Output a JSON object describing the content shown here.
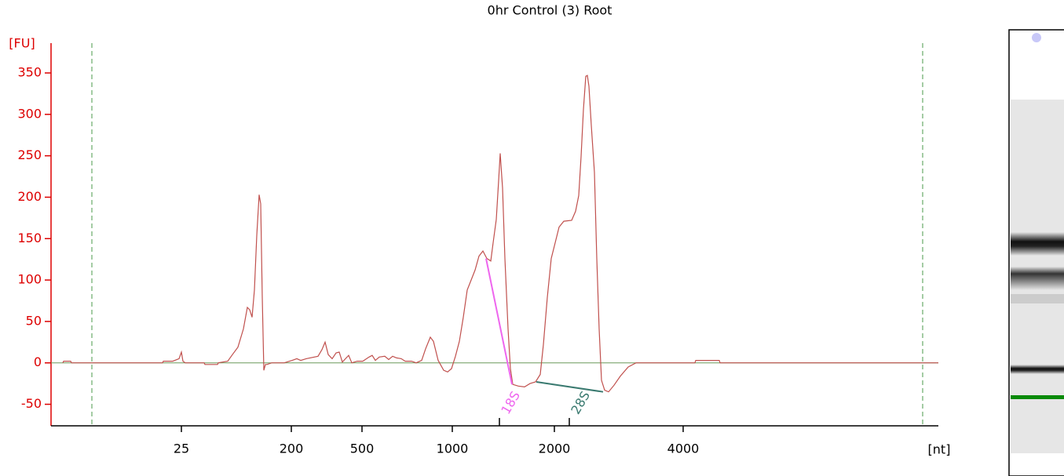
{
  "chart_data": {
    "type": "line",
    "title": "0hr Control (3) Root",
    "y_label": "[FU]",
    "x_label": "[nt]",
    "xlim": [
      0,
      113
    ],
    "ylim": [
      -76,
      386
    ],
    "yticks": [
      -50,
      0,
      50,
      100,
      150,
      200,
      250,
      300,
      350
    ],
    "xticks": [
      {
        "value": 16.6,
        "label": "25"
      },
      {
        "value": 30.6,
        "label": "200"
      },
      {
        "value": 39.6,
        "label": "500"
      },
      {
        "value": 51.1,
        "label": "1000"
      },
      {
        "value": 64.1,
        "label": "2000"
      },
      {
        "value": 80.5,
        "label": "4000"
      }
    ],
    "baseline": 0,
    "markers": [
      5.2,
      111
    ],
    "axis_color": "#dd0000",
    "series": [
      {
        "color": "#c0504d",
        "x": [
          1.5,
          1.6,
          2.5,
          2.6,
          14.2,
          14.3,
          15.5,
          16.3,
          16.6,
          16.8,
          17.1,
          19.5,
          19.6,
          21.2,
          21.3,
          22.5,
          23.1,
          23.8,
          24.5,
          25,
          25.3,
          25.6,
          25.9,
          26.2,
          26.5,
          26.7,
          26.9,
          27.1,
          27.3,
          27.5,
          28.1,
          29,
          29.7,
          30.7,
          31.3,
          31.8,
          32.5,
          34,
          34.5,
          34.9,
          35.3,
          35.8,
          36.3,
          36.7,
          37.1,
          37.5,
          37.9,
          38.3,
          39,
          39.7,
          40.5,
          40.9,
          41.3,
          41.8,
          42.5,
          43,
          43.5,
          44,
          44.6,
          45.1,
          45.9,
          46.5,
          47.2,
          47.7,
          48.3,
          48.7,
          49.3,
          50,
          50.5,
          51,
          51.5,
          52,
          52.5,
          53,
          53.5,
          54,
          54.5,
          55,
          55.5,
          56,
          56.3,
          56.7,
          57,
          57.2,
          57.5,
          57.8,
          58.2,
          58.5,
          58.8,
          59.5,
          60.3,
          61,
          61.7,
          62.3,
          62.7,
          63.2,
          63.7,
          64.2,
          64.7,
          65.3,
          66.3,
          66.8,
          67.2,
          67.5,
          67.8,
          68.1,
          68.3,
          68.5,
          68.8,
          69.2,
          69.5,
          69.8,
          70.1,
          70.5,
          71,
          71.7,
          72.5,
          73.5,
          74.5,
          80.5,
          82,
          82.1,
          85.1,
          85.2,
          113
        ],
        "values": [
          0,
          2,
          2,
          0,
          0,
          2,
          2,
          5,
          13,
          2,
          0,
          0,
          -2,
          -2,
          0,
          2,
          10,
          19,
          41,
          67,
          64,
          55,
          88,
          154,
          203,
          192,
          79,
          -9,
          -2,
          -2,
          0,
          0,
          0,
          3,
          5,
          3,
          5,
          8,
          16,
          25,
          10,
          5,
          12,
          13,
          1,
          5,
          9,
          0,
          2,
          2,
          7,
          9,
          3,
          7,
          8,
          4,
          8,
          6,
          5,
          2,
          2,
          0,
          3,
          17,
          31,
          26,
          3,
          -9,
          -11,
          -7,
          8,
          26,
          55,
          88,
          100,
          112,
          129,
          135,
          126,
          123,
          145,
          173,
          220,
          253,
          211,
          126,
          41,
          -7,
          -26,
          -28,
          -29,
          -25,
          -23,
          -14,
          22,
          79,
          126,
          145,
          164,
          171,
          172,
          183,
          202,
          249,
          306,
          346,
          347,
          334,
          287,
          230,
          126,
          41,
          -21,
          -33,
          -35,
          -27,
          -16,
          -5,
          0,
          0,
          0,
          3,
          3,
          0,
          0
        ]
      }
    ],
    "peaks": [
      {
        "label": "18S",
        "color": "#ee66ee",
        "tick": 57.1,
        "x1": 55.4,
        "y1": 126,
        "x2": 58.7,
        "y2": -26
      },
      {
        "label": "28S",
        "color": "#3a7a70",
        "tick": 66,
        "x1": 61.8,
        "y1": -23,
        "x2": 70.3,
        "y2": -35
      }
    ]
  }
}
